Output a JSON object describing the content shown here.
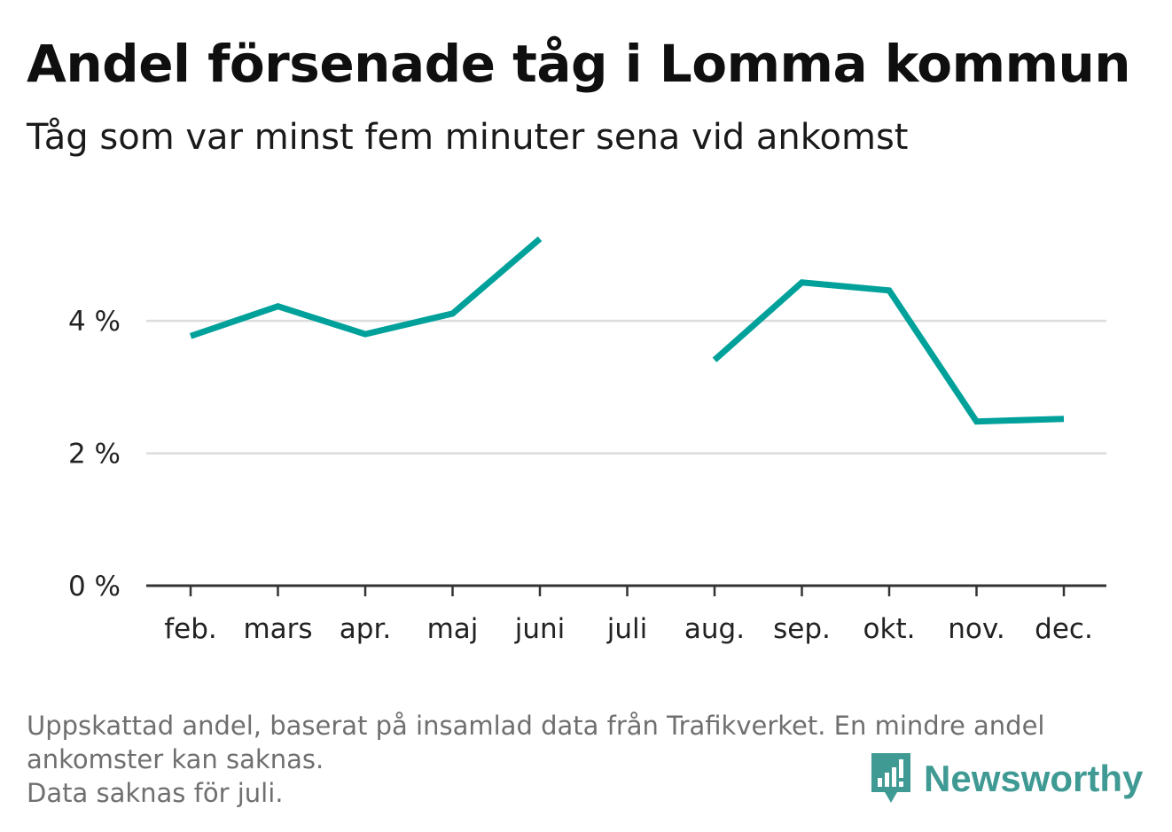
{
  "colors": {
    "series": "#00a19a",
    "grid": "#dcdcdc",
    "axis": "#333333",
    "footnote": "#6f6f6f",
    "brand": "#3f9a94"
  },
  "footnote": {
    "line1": "Uppskattad andel, baserat på insamlad data från Trafikverket. En mindre andel",
    "line2": "ankomster kan saknas.",
    "line3": "Data saknas för juli."
  },
  "brand": {
    "name": "Newsworthy",
    "icon": "bar-chart-speech-bubble-icon"
  },
  "chart_data": {
    "type": "line",
    "title": "Andel försenade tåg i Lomma kommun",
    "subtitle": "Tåg som var minst fem minuter sena vid ankomst",
    "categories": [
      "feb.",
      "mars",
      "apr.",
      "maj",
      "juni",
      "juli",
      "aug.",
      "sep.",
      "okt.",
      "nov.",
      "dec."
    ],
    "series": [
      {
        "values": [
          3.77,
          4.22,
          3.8,
          4.11,
          5.24,
          null,
          3.41,
          4.58,
          4.46,
          2.48,
          2.52
        ]
      }
    ],
    "ylim": [
      0,
      5.3
    ],
    "yticks": [
      0,
      2,
      4
    ],
    "ytick_labels": [
      "0 %",
      "2 %",
      "4 %"
    ],
    "grid": true,
    "legend": "none"
  }
}
